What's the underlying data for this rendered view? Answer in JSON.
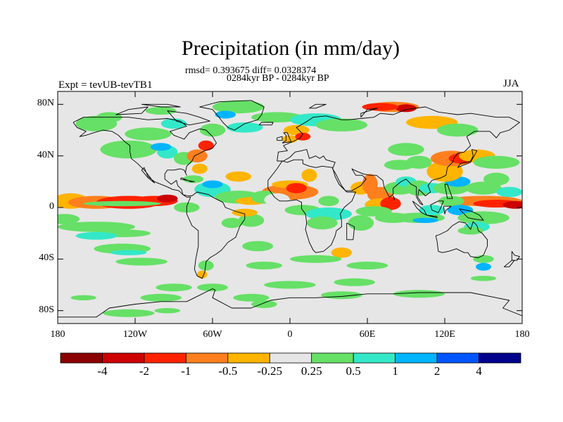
{
  "title": "Precipitation (in mm/day)",
  "stats": "rmsd= 0.393675  diff= 0.0328374",
  "period": "0284kyr BP - 0284kyr BP",
  "experiment": "Expt = tevUB-tevTB1",
  "season": "JJA",
  "map": {
    "lon_range": [
      -180,
      180
    ],
    "lat_range": [
      -90,
      90
    ],
    "background": "#e6e6e6",
    "coastline_color": "#000000",
    "y_ticks": [
      {
        "label": "80N",
        "lat": 80
      },
      {
        "label": "40N",
        "lat": 40
      },
      {
        "label": "0",
        "lat": 0
      },
      {
        "label": "40S",
        "lat": -40
      },
      {
        "label": "80S",
        "lat": -80
      }
    ],
    "x_ticks": [
      {
        "label": "180",
        "lon": -180
      },
      {
        "label": "120W",
        "lon": -120
      },
      {
        "label": "60W",
        "lon": -60
      },
      {
        "label": "0",
        "lon": 0
      },
      {
        "label": "60E",
        "lon": 60
      },
      {
        "label": "120E",
        "lon": 120
      },
      {
        "label": "180",
        "lon": 180
      }
    ]
  },
  "colorbar": {
    "colors": [
      "#8b0000",
      "#cd0000",
      "#ff2200",
      "#ff7f1e",
      "#ffb400",
      "#e6e6e6",
      "#66e066",
      "#33e8c8",
      "#00b4ff",
      "#0055ff",
      "#00008b"
    ],
    "labels": [
      "-4",
      "-2",
      "-1",
      "-0.5",
      "-0.25",
      "0.25",
      "0.5",
      "1",
      "2",
      "4"
    ]
  }
}
